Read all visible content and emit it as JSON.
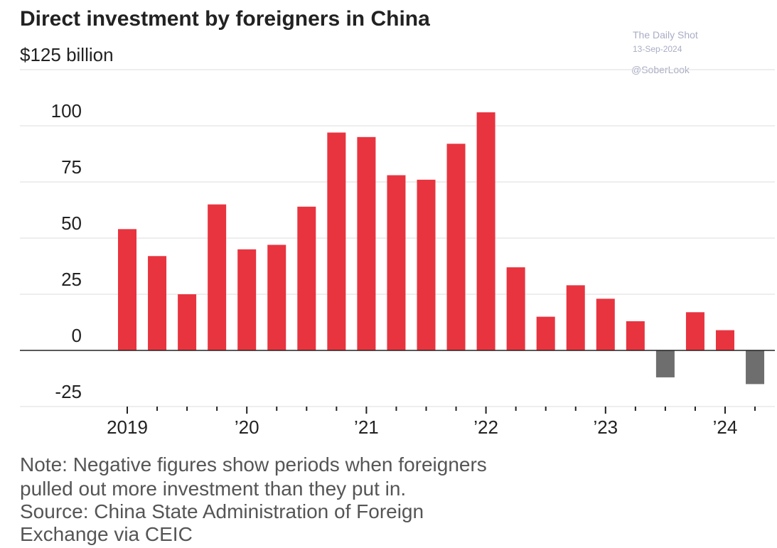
{
  "chart_data": {
    "type": "bar",
    "title": "Direct investment by foreigners in China",
    "categories": [
      "2019",
      null,
      null,
      null,
      "’20",
      null,
      null,
      null,
      "’21",
      null,
      null,
      null,
      "’22",
      null,
      null,
      null,
      "’23",
      null,
      null,
      null,
      "’24",
      null
    ],
    "values": [
      54,
      42,
      25,
      65,
      45,
      47,
      64,
      97,
      95,
      78,
      76,
      92,
      106,
      37,
      15,
      29,
      23,
      13,
      -12,
      17,
      9,
      -15
    ],
    "color": "#e8343f",
    "negative_color": "#6e6e6e",
    "ylim": [
      -25,
      125
    ],
    "yticks": [
      {
        "value": 125,
        "label": "$125 billion"
      },
      100,
      75,
      50,
      25,
      0,
      -25
    ],
    "grid": true,
    "annotations": [
      "The Daily Shot",
      "13-Sep-2024",
      "@SoberLook"
    ],
    "notes": [
      "Note: Negative figures show periods when foreigners",
      "pulled out more investment than they put in.",
      "Source: China State Administration of Foreign",
      "Exchange via CEIC"
    ]
  }
}
